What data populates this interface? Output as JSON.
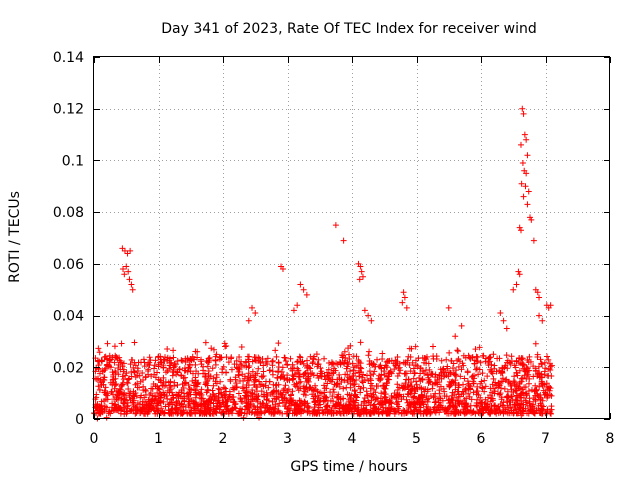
{
  "chart_data": {
    "type": "scatter",
    "title": "Day 341 of 2023, Rate Of TEC Index for receiver wind",
    "xlabel": "GPS time / hours",
    "ylabel": "ROTI / TECUs",
    "xlim": [
      0,
      8
    ],
    "ylim": [
      0,
      0.14
    ],
    "x_ticks": [
      "0",
      "1",
      "2",
      "3",
      "4",
      "5",
      "6",
      "7",
      "8"
    ],
    "y_ticks": [
      "0",
      "0.02",
      "0.04",
      "0.06",
      "0.08",
      "0.1",
      "0.12",
      "0.14"
    ],
    "grid": true,
    "marker": "+",
    "color": "#ff0000",
    "series": [
      {
        "name": "ROTI",
        "points": [
          [
            0.44,
            0.066
          ],
          [
            0.48,
            0.065
          ],
          [
            0.52,
            0.064
          ],
          [
            0.56,
            0.065
          ],
          [
            0.45,
            0.058
          ],
          [
            0.5,
            0.059
          ],
          [
            0.55,
            0.054
          ],
          [
            0.58,
            0.052
          ],
          [
            0.6,
            0.05
          ],
          [
            0.47,
            0.056
          ],
          [
            0.53,
            0.057
          ],
          [
            2.9,
            0.059
          ],
          [
            2.93,
            0.058
          ],
          [
            3.75,
            0.075
          ],
          [
            3.87,
            0.069
          ],
          [
            4.1,
            0.06
          ],
          [
            4.13,
            0.059
          ],
          [
            4.15,
            0.057
          ],
          [
            4.17,
            0.055
          ],
          [
            4.12,
            0.054
          ],
          [
            4.2,
            0.042
          ],
          [
            4.25,
            0.04
          ],
          [
            4.3,
            0.038
          ],
          [
            4.8,
            0.049
          ],
          [
            4.82,
            0.047
          ],
          [
            4.78,
            0.045
          ],
          [
            4.85,
            0.043
          ],
          [
            3.2,
            0.052
          ],
          [
            3.25,
            0.05
          ],
          [
            3.3,
            0.048
          ],
          [
            3.15,
            0.044
          ],
          [
            3.1,
            0.042
          ],
          [
            2.45,
            0.043
          ],
          [
            2.5,
            0.041
          ],
          [
            2.4,
            0.038
          ],
          [
            6.64,
            0.12
          ],
          [
            6.66,
            0.118
          ],
          [
            6.68,
            0.11
          ],
          [
            6.7,
            0.108
          ],
          [
            6.62,
            0.106
          ],
          [
            6.72,
            0.102
          ],
          [
            6.65,
            0.099
          ],
          [
            6.67,
            0.096
          ],
          [
            6.7,
            0.095
          ],
          [
            6.63,
            0.091
          ],
          [
            6.69,
            0.09
          ],
          [
            6.74,
            0.088
          ],
          [
            6.66,
            0.086
          ],
          [
            6.72,
            0.083
          ],
          [
            6.76,
            0.078
          ],
          [
            6.78,
            0.077
          ],
          [
            6.6,
            0.074
          ],
          [
            6.62,
            0.073
          ],
          [
            6.82,
            0.069
          ],
          [
            6.58,
            0.057
          ],
          [
            6.6,
            0.056
          ],
          [
            6.55,
            0.052
          ],
          [
            6.5,
            0.05
          ],
          [
            6.85,
            0.05
          ],
          [
            6.88,
            0.049
          ],
          [
            6.9,
            0.047
          ],
          [
            6.9,
            0.04
          ],
          [
            6.95,
            0.038
          ],
          [
            7.02,
            0.044
          ],
          [
            7.05,
            0.043
          ],
          [
            7.08,
            0.044
          ],
          [
            5.5,
            0.043
          ],
          [
            5.6,
            0.032
          ],
          [
            5.7,
            0.036
          ],
          [
            6.3,
            0.041
          ],
          [
            6.35,
            0.038
          ],
          [
            6.4,
            0.035
          ],
          [
            1.6,
            0.026
          ],
          [
            1.9,
            0.025
          ]
        ],
        "bulk_envelope": {
          "x_range": [
            0.0,
            7.1
          ],
          "y_range": [
            0.0,
            0.03
          ],
          "description": "dense band of points"
        }
      }
    ]
  }
}
